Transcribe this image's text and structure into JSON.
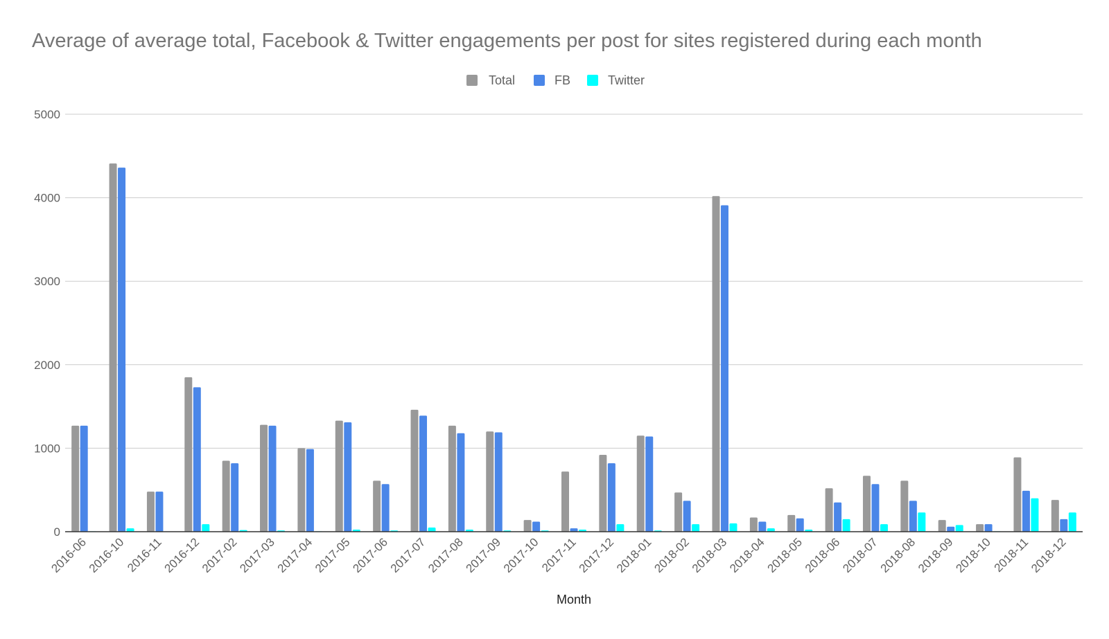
{
  "chart_data": {
    "type": "bar",
    "title": "Average of average total, Facebook & Twitter engagements per post for sites registered during each month",
    "xlabel": "Month",
    "ylabel": "",
    "ylim": [
      0,
      5000
    ],
    "yticks": [
      0,
      1000,
      2000,
      3000,
      4000,
      5000
    ],
    "grid": true,
    "legend_position": "top-center",
    "categories": [
      "2016-06",
      "2016-10",
      "2016-11",
      "2016-12",
      "2017-02",
      "2017-03",
      "2017-04",
      "2017-05",
      "2017-06",
      "2017-07",
      "2017-08",
      "2017-09",
      "2017-10",
      "2017-11",
      "2017-12",
      "2018-01",
      "2018-02",
      "2018-03",
      "2018-04",
      "2018-05",
      "2018-06",
      "2018-07",
      "2018-08",
      "2018-09",
      "2018-10",
      "2018-11",
      "2018-12"
    ],
    "series": [
      {
        "name": "Total",
        "color": "#999999",
        "values": [
          1270,
          4410,
          480,
          1850,
          850,
          1280,
          1000,
          1330,
          610,
          1460,
          1270,
          1200,
          140,
          720,
          920,
          1150,
          470,
          4020,
          170,
          200,
          520,
          670,
          610,
          140,
          90,
          890,
          380
        ]
      },
      {
        "name": "FB",
        "color": "#4a86e8",
        "values": [
          1270,
          4360,
          480,
          1730,
          820,
          1270,
          990,
          1310,
          570,
          1390,
          1180,
          1190,
          120,
          40,
          820,
          1140,
          370,
          3910,
          120,
          160,
          350,
          570,
          370,
          60,
          90,
          490,
          150
        ]
      },
      {
        "name": "Twitter",
        "color": "#00ffff",
        "values": [
          5,
          40,
          3,
          90,
          20,
          15,
          5,
          25,
          15,
          50,
          25,
          15,
          15,
          25,
          90,
          15,
          90,
          100,
          40,
          25,
          150,
          90,
          230,
          80,
          5,
          400,
          230
        ]
      }
    ]
  }
}
